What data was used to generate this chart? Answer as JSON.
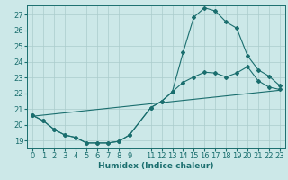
{
  "bg_color": "#cce8e8",
  "grid_color": "#aacccc",
  "line_color": "#1a6e6e",
  "xlabel": "Humidex (Indice chaleur)",
  "xlim": [
    -0.5,
    23.5
  ],
  "ylim": [
    18.5,
    27.6
  ],
  "yticks": [
    19,
    20,
    21,
    22,
    23,
    24,
    25,
    26,
    27
  ],
  "xticks": [
    0,
    1,
    2,
    3,
    4,
    5,
    6,
    7,
    8,
    9,
    11,
    12,
    13,
    14,
    15,
    16,
    17,
    18,
    19,
    20,
    21,
    22,
    23
  ],
  "line1_x": [
    0,
    1,
    2,
    3,
    4,
    5,
    6,
    7,
    8,
    9,
    11,
    12,
    13,
    14,
    15,
    16,
    17,
    18,
    19,
    20,
    21,
    22,
    23
  ],
  "line1_y": [
    20.6,
    20.25,
    19.7,
    19.35,
    19.2,
    18.85,
    18.85,
    18.85,
    18.95,
    19.35,
    21.1,
    21.5,
    22.1,
    24.6,
    26.85,
    27.45,
    27.25,
    26.55,
    26.15,
    24.4,
    23.5,
    23.1,
    22.5
  ],
  "line2_x": [
    0,
    1,
    2,
    3,
    4,
    5,
    6,
    7,
    8,
    9,
    11,
    12,
    13,
    14,
    15,
    16,
    17,
    18,
    19,
    20,
    21,
    22,
    23
  ],
  "line2_y": [
    20.6,
    20.25,
    19.7,
    19.35,
    19.2,
    18.85,
    18.85,
    18.85,
    18.95,
    19.35,
    21.1,
    21.5,
    22.1,
    22.7,
    23.05,
    23.35,
    23.3,
    23.05,
    23.3,
    23.7,
    22.8,
    22.4,
    22.25
  ],
  "line3_x": [
    0,
    23
  ],
  "line3_y": [
    20.55,
    22.2
  ],
  "marker_size": 2.0,
  "font_size": 6.5,
  "tick_fontsize": 6.0,
  "figwidth": 3.2,
  "figheight": 2.0,
  "dpi": 100
}
